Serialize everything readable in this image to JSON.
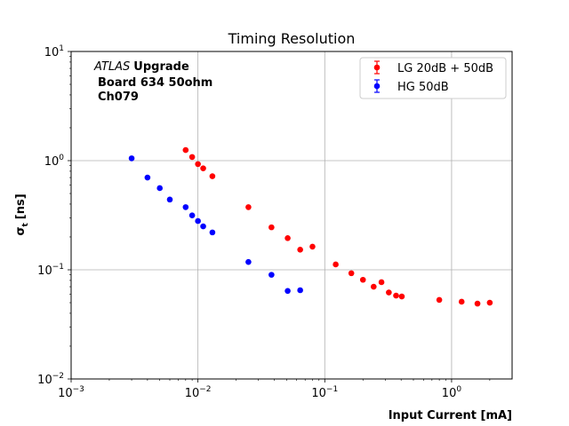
{
  "chart_data": {
    "type": "scatter",
    "title": "Timing Resolution",
    "xlabel": "Input Current [mA]",
    "ylabel_main": "σ",
    "ylabel_sub": "t",
    "ylabel_unit": "[ns]",
    "xscale": "log",
    "yscale": "log",
    "xlim": [
      0.001,
      3
    ],
    "ylim": [
      0.01,
      10
    ],
    "grid": true,
    "legend_position": "upper right",
    "x_ticks": [
      {
        "value": 0.001,
        "base": "10",
        "exp": "−3"
      },
      {
        "value": 0.01,
        "base": "10",
        "exp": "−2"
      },
      {
        "value": 0.1,
        "base": "10",
        "exp": "−1"
      },
      {
        "value": 1,
        "base": "10",
        "exp": "0"
      }
    ],
    "y_ticks": [
      {
        "value": 0.01,
        "base": "10",
        "exp": "−2"
      },
      {
        "value": 0.1,
        "base": "10",
        "exp": "−1"
      },
      {
        "value": 1,
        "base": "10",
        "exp": "0"
      },
      {
        "value": 10,
        "base": "10",
        "exp": "1"
      }
    ],
    "annotation": {
      "italic": "ATLAS",
      "bold": "Upgrade",
      "line2": "Board 634 50ohm",
      "line3": "Ch079"
    },
    "series": [
      {
        "name": "LG 20dB + 50dB",
        "color": "#ff0000",
        "points": [
          [
            0.008,
            1.25
          ],
          [
            0.009,
            1.08
          ],
          [
            0.01,
            0.93
          ],
          [
            0.011,
            0.85
          ],
          [
            0.013,
            0.72
          ],
          [
            0.025,
            0.375
          ],
          [
            0.038,
            0.245
          ],
          [
            0.051,
            0.195
          ],
          [
            0.064,
            0.153
          ],
          [
            0.08,
            0.163
          ],
          [
            0.122,
            0.112
          ],
          [
            0.162,
            0.093
          ],
          [
            0.2,
            0.081
          ],
          [
            0.243,
            0.07
          ],
          [
            0.28,
            0.077
          ],
          [
            0.32,
            0.062
          ],
          [
            0.365,
            0.058
          ],
          [
            0.405,
            0.057
          ],
          [
            0.8,
            0.053
          ],
          [
            1.2,
            0.051
          ],
          [
            1.6,
            0.049
          ],
          [
            2.0,
            0.05
          ]
        ]
      },
      {
        "name": "HG 50dB",
        "color": "#0000ff",
        "points": [
          [
            0.003,
            1.05
          ],
          [
            0.004,
            0.7
          ],
          [
            0.005,
            0.56
          ],
          [
            0.006,
            0.44
          ],
          [
            0.008,
            0.375
          ],
          [
            0.009,
            0.315
          ],
          [
            0.01,
            0.28
          ],
          [
            0.011,
            0.25
          ],
          [
            0.013,
            0.22
          ],
          [
            0.025,
            0.118
          ],
          [
            0.038,
            0.09
          ],
          [
            0.051,
            0.064
          ],
          [
            0.064,
            0.065
          ]
        ]
      }
    ]
  }
}
